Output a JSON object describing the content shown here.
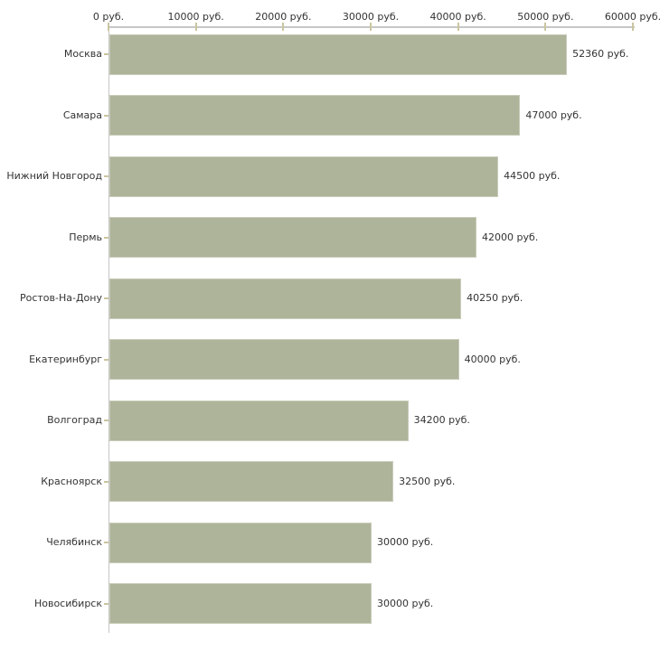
{
  "chart_data": {
    "type": "bar",
    "orientation": "horizontal",
    "title": "",
    "categories": [
      "Москва",
      "Самара",
      "Нижний Новгород",
      "Пермь",
      "Ростов-На-Дону",
      "Екатеринбург",
      "Волгоград",
      "Красноярск",
      "Челябинск",
      "Новосибирск"
    ],
    "values": [
      52360,
      47000,
      44500,
      42000,
      40250,
      40000,
      34200,
      32500,
      30000,
      30000
    ],
    "value_labels": [
      "52360 руб.",
      "47000 руб.",
      "44500 руб.",
      "42000 руб.",
      "40250 руб.",
      "40000 руб.",
      "34200 руб.",
      "32500 руб.",
      "30000 руб.",
      "30000 руб."
    ],
    "unit": "руб.",
    "x_axis": {
      "position": "top",
      "min": 0,
      "max": 60000,
      "ticks": [
        0,
        10000,
        20000,
        30000,
        40000,
        50000,
        60000
      ],
      "tick_labels": [
        "0 руб.",
        "10000 руб.",
        "20000 руб.",
        "30000 руб.",
        "40000 руб.",
        "50000 руб.",
        "60000 руб."
      ]
    },
    "grid": false,
    "legend": false
  },
  "style": {
    "background": "#ffffff",
    "bar_color": "#adb49a",
    "bar_border_color": "#c9ccba",
    "axis_line_color": "#c6c6c6",
    "tick_color": "#cbc5a0",
    "text_color": "#333333"
  }
}
